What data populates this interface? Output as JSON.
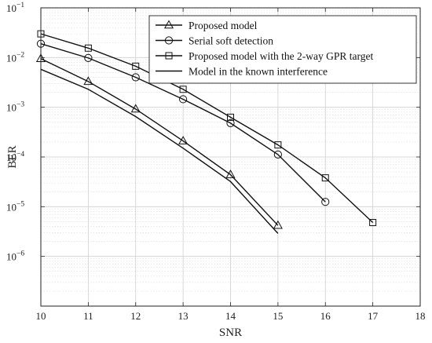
{
  "chart_data": {
    "type": "line",
    "xlabel": "SNR",
    "ylabel": "BER",
    "xlim": [
      10,
      18
    ],
    "ylim": [
      1e-07,
      0.1
    ],
    "yscale": "log",
    "grid": true,
    "minor_grid": true,
    "legend_position": "top-right",
    "x_ticks": [
      10,
      11,
      12,
      13,
      14,
      15,
      16,
      17,
      18
    ],
    "y_ticks": [
      {
        "value": 1e-06,
        "base": "10",
        "exp": "−6"
      },
      {
        "value": 1e-05,
        "base": "10",
        "exp": "−5"
      },
      {
        "value": 0.0001,
        "base": "10",
        "exp": "−4"
      },
      {
        "value": 0.001,
        "base": "10",
        "exp": "−3"
      },
      {
        "value": 0.01,
        "base": "10",
        "exp": "−2"
      },
      {
        "value": 0.1,
        "base": "10",
        "exp": "−1"
      }
    ],
    "series": [
      {
        "name": "Proposed model",
        "marker": "triangle",
        "x": [
          10,
          11,
          12,
          13,
          14,
          15
        ],
        "y": [
          0.0095,
          0.0033,
          0.00092,
          0.00021,
          4.4e-05,
          4.2e-06
        ]
      },
      {
        "name": "Serial soft detection",
        "marker": "circle",
        "x": [
          10,
          11,
          12,
          13,
          14,
          15,
          16
        ],
        "y": [
          0.019,
          0.0098,
          0.004,
          0.00145,
          0.00048,
          0.000112,
          1.25e-05
        ]
      },
      {
        "name": "Proposed model with the 2-way GPR target",
        "marker": "square",
        "x": [
          10,
          11,
          12,
          13,
          14,
          15,
          16,
          17
        ],
        "y": [
          0.03,
          0.0155,
          0.0067,
          0.0023,
          0.00063,
          0.000175,
          3.8e-05,
          4.8e-06
        ]
      },
      {
        "name": "Model in the known interference",
        "marker": "none",
        "x": [
          10,
          11,
          12,
          13,
          14,
          15
        ],
        "y": [
          0.0058,
          0.0023,
          0.00065,
          0.00015,
          3.2e-05,
          2.9e-06
        ]
      }
    ]
  }
}
